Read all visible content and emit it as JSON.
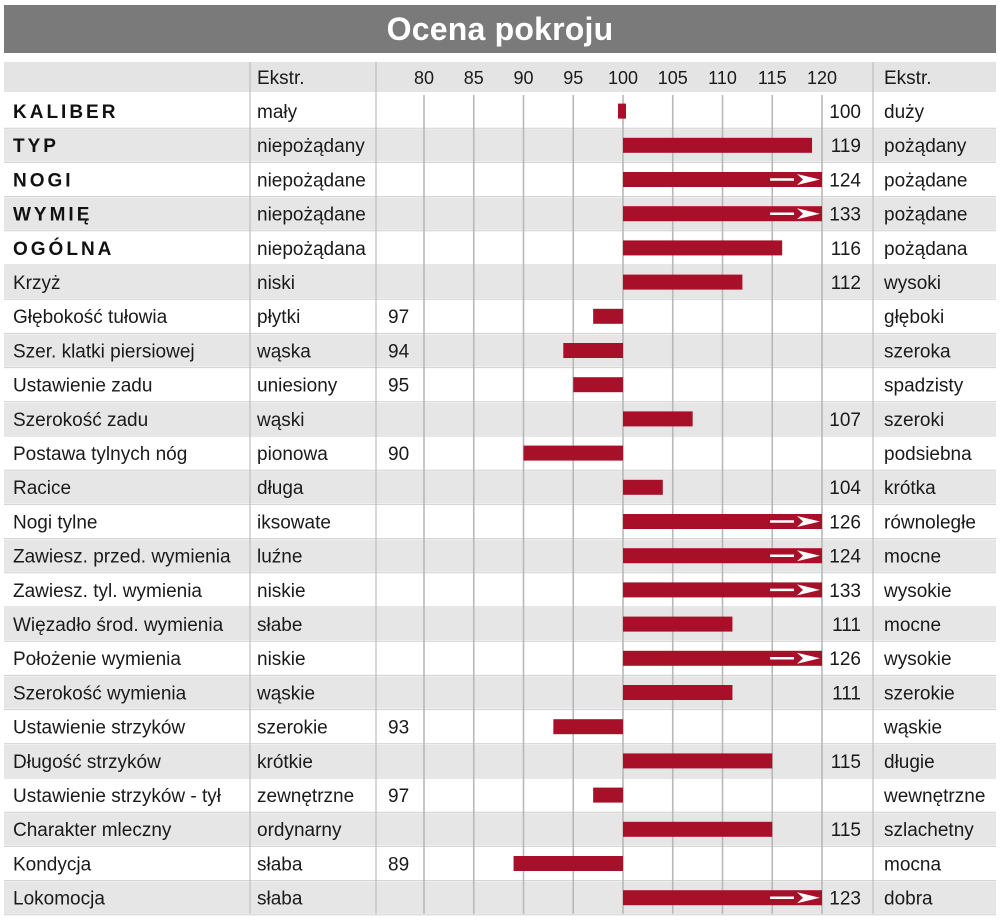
{
  "title": "Ocena pokroju",
  "chart_data": {
    "type": "bar",
    "column_headers": {
      "left_extreme": "Ekstr.",
      "right_extreme": "Ekstr."
    },
    "x_ticks": [
      80,
      85,
      90,
      95,
      100,
      105,
      110,
      115,
      120
    ],
    "xlim": [
      75,
      120
    ],
    "baseline": 100,
    "bar_color": "#a8102a",
    "rows": [
      {
        "name": "KALIBER",
        "bold": true,
        "left": "mały",
        "right": "duży",
        "value": 100,
        "overflow": false
      },
      {
        "name": "TYP",
        "bold": true,
        "left": "niepożądany",
        "right": "pożądany",
        "value": 119,
        "overflow": false
      },
      {
        "name": "NOGI",
        "bold": true,
        "left": "niepożądane",
        "right": "pożądane",
        "value": 124,
        "overflow": true
      },
      {
        "name": "WYMIĘ",
        "bold": true,
        "left": "niepożądane",
        "right": "pożądane",
        "value": 133,
        "overflow": true
      },
      {
        "name": "OGÓLNA",
        "bold": true,
        "left": "niepożądana",
        "right": "pożądana",
        "value": 116,
        "overflow": false
      },
      {
        "name": "Krzyż",
        "bold": false,
        "left": "niski",
        "right": "wysoki",
        "value": 112,
        "overflow": false
      },
      {
        "name": "Głębokość tułowia",
        "bold": false,
        "left": "płytki",
        "right": "głęboki",
        "value": 97,
        "overflow": false
      },
      {
        "name": "Szer. klatki piersiowej",
        "bold": false,
        "left": "wąska",
        "right": "szeroka",
        "value": 94,
        "overflow": false
      },
      {
        "name": "Ustawienie zadu",
        "bold": false,
        "left": "uniesiony",
        "right": "spadzisty",
        "value": 95,
        "overflow": false
      },
      {
        "name": "Szerokość zadu",
        "bold": false,
        "left": "wąski",
        "right": "szeroki",
        "value": 107,
        "overflow": false
      },
      {
        "name": "Postawa tylnych nóg",
        "bold": false,
        "left": "pionowa",
        "right": "podsiebna",
        "value": 90,
        "overflow": false
      },
      {
        "name": "Racice",
        "bold": false,
        "left": "długa",
        "right": "krótka",
        "value": 104,
        "overflow": false
      },
      {
        "name": "Nogi tylne",
        "bold": false,
        "left": "iksowate",
        "right": "równoległe",
        "value": 126,
        "overflow": true
      },
      {
        "name": "Zawiesz. przed. wymienia",
        "bold": false,
        "left": "luźne",
        "right": "mocne",
        "value": 124,
        "overflow": true
      },
      {
        "name": "Zawiesz. tyl. wymienia",
        "bold": false,
        "left": "niskie",
        "right": "wysokie",
        "value": 133,
        "overflow": true
      },
      {
        "name": "Więzadło środ. wymienia",
        "bold": false,
        "left": "słabe",
        "right": "mocne",
        "value": 111,
        "overflow": false
      },
      {
        "name": "Położenie wymienia",
        "bold": false,
        "left": "niskie",
        "right": "wysokie",
        "value": 126,
        "overflow": true
      },
      {
        "name": "Szerokość wymienia",
        "bold": false,
        "left": "wąskie",
        "right": "szerokie",
        "value": 111,
        "overflow": false
      },
      {
        "name": "Ustawienie strzyków",
        "bold": false,
        "left": "szerokie",
        "right": "wąskie",
        "value": 93,
        "overflow": false
      },
      {
        "name": "Długość strzyków",
        "bold": false,
        "left": "krótkie",
        "right": "długie",
        "value": 115,
        "overflow": false
      },
      {
        "name": "Ustawienie strzyków - tył",
        "bold": false,
        "left": "zewnętrzne",
        "right": "wewnętrzne",
        "value": 97,
        "overflow": false
      },
      {
        "name": "Charakter mleczny",
        "bold": false,
        "left": "ordynarny",
        "right": "szlachetny",
        "value": 115,
        "overflow": false
      },
      {
        "name": "Kondycja",
        "bold": false,
        "left": "słaba",
        "right": "mocna",
        "value": 89,
        "overflow": false
      },
      {
        "name": "Lokomocja",
        "bold": false,
        "left": "słaba",
        "right": "dobra",
        "value": 123,
        "overflow": true
      }
    ]
  }
}
